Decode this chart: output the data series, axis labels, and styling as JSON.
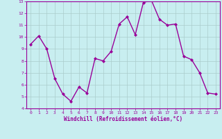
{
  "x": [
    0,
    1,
    2,
    3,
    4,
    5,
    6,
    7,
    8,
    9,
    10,
    11,
    12,
    13,
    14,
    15,
    16,
    17,
    18,
    19,
    20,
    21,
    22,
    23
  ],
  "y": [
    9.4,
    10.1,
    9.0,
    6.5,
    5.2,
    4.6,
    5.8,
    5.3,
    8.2,
    8.0,
    8.8,
    11.1,
    11.7,
    10.2,
    12.9,
    13.1,
    11.5,
    11.0,
    11.1,
    8.4,
    8.1,
    7.0,
    5.3,
    5.2
  ],
  "line_color": "#990099",
  "marker": "D",
  "marker_size": 2,
  "bg_color": "#c8eef0",
  "grid_color": "#aacccc",
  "xlabel": "Windchill (Refroidissement éolien,°C)",
  "xlabel_color": "#990099",
  "tick_color": "#990099",
  "ylim": [
    4,
    13
  ],
  "yticks": [
    4,
    5,
    6,
    7,
    8,
    9,
    10,
    11,
    12,
    13
  ],
  "xticks": [
    0,
    1,
    2,
    3,
    4,
    5,
    6,
    7,
    8,
    9,
    10,
    11,
    12,
    13,
    14,
    15,
    16,
    17,
    18,
    19,
    20,
    21,
    22,
    23
  ],
  "spine_color": "#990099",
  "line_width": 1.0,
  "tick_fontsize": 4.5,
  "xlabel_fontsize": 5.5
}
